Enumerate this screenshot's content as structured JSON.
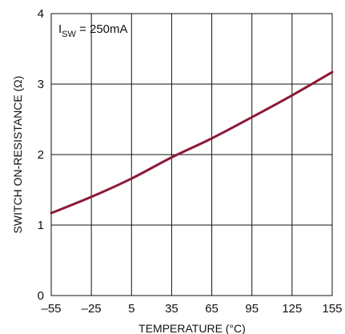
{
  "chart_data": {
    "type": "line",
    "xlabel": "TEMPERATURE (°C)",
    "ylabel": "SWITCH ON-RESISTANCE (Ω)",
    "annotation": {
      "main": "I",
      "sub": "SW",
      "rest": " = 250mA"
    },
    "xlim": [
      -55,
      155
    ],
    "ylim": [
      0,
      4
    ],
    "xticks": [
      -55,
      -25,
      5,
      35,
      65,
      95,
      125,
      155
    ],
    "xtick_labels": [
      "–55",
      "–25",
      "5",
      "35",
      "65",
      "95",
      "125",
      "155"
    ],
    "yticks": [
      0,
      1,
      2,
      3,
      4
    ],
    "ytick_labels": [
      "0",
      "1",
      "2",
      "3",
      "4"
    ],
    "grid": true,
    "series": [
      {
        "color": "#8b1a35",
        "x": [
          -55,
          -25,
          5,
          35,
          65,
          95,
          125,
          155
        ],
        "y": [
          1.17,
          1.4,
          1.66,
          1.96,
          2.23,
          2.53,
          2.84,
          3.17
        ]
      }
    ]
  }
}
